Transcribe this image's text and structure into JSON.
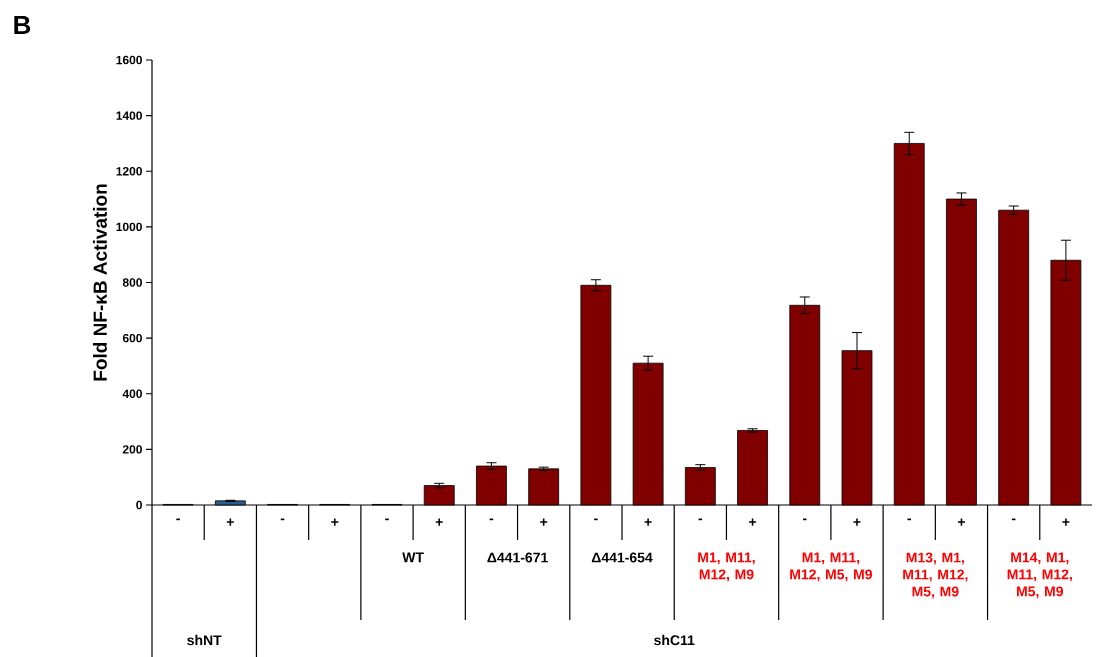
{
  "chart_data": {
    "type": "bar",
    "ylabel": "Fold NF-κB Activation",
    "categories": [
      "-",
      "+",
      "-",
      "+",
      "-",
      "+",
      "-",
      "+",
      "-",
      "+",
      "-",
      "+",
      "-",
      "+",
      "-",
      "+",
      "-",
      "+"
    ],
    "values": [
      2,
      15,
      2,
      2,
      2,
      70,
      140,
      130,
      790,
      510,
      135,
      268,
      718,
      555,
      1300,
      1100,
      1060,
      880
    ],
    "errors": [
      null,
      2,
      null,
      null,
      null,
      8,
      12,
      6,
      20,
      25,
      10,
      6,
      30,
      65,
      40,
      22,
      15,
      72
    ],
    "colors": [
      "#1f4e79",
      "#2a5d8f",
      "#800000",
      "#800000",
      "#800000",
      "#800000",
      "#800000",
      "#800000",
      "#800000",
      "#800000",
      "#800000",
      "#800000",
      "#800000",
      "#800000",
      "#800000",
      "#800000",
      "#800000",
      "#800000"
    ],
    "ylim": [
      0,
      1600
    ],
    "yticks": [
      0,
      200,
      400,
      600,
      800,
      1000,
      1200,
      1400,
      1600
    ],
    "annotations": [
      "B",
      "WT",
      "Δ441-671",
      "Δ441-654",
      "M1, M11, M12, M9",
      "M1, M11, M12, M5, M9",
      "M13, M1, M11, M12, M5, M9",
      "M14, M1, M11, M12, M5, M9",
      "shNT",
      "shC11"
    ]
  }
}
